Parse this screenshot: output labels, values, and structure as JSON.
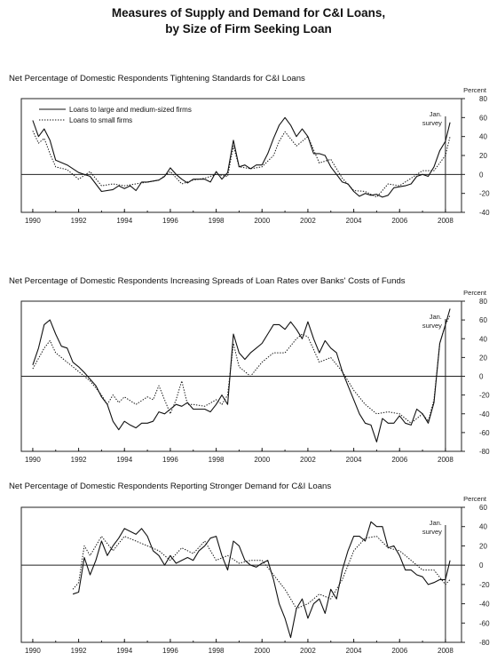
{
  "title_line1": "Measures of Supply and Demand for C&I Loans,",
  "title_line2": "by Size of Firm Seeking Loan",
  "chart_data": [
    {
      "type": "line",
      "title": "Net Percentage of Domestic Respondents Tightening Standards for C&I Loans",
      "ylabel": "Percent",
      "annotation": [
        "Jan.",
        "survey"
      ],
      "ylim": [
        -40,
        80
      ],
      "yticks": [
        80,
        60,
        40,
        20,
        0,
        -20,
        -40
      ],
      "xlim": [
        1989.5,
        2008.7
      ],
      "xticks": [
        "1990",
        "1992",
        "1994",
        "1996",
        "1998",
        "2000",
        "2002",
        "2004",
        "2006",
        "2008"
      ],
      "vline_x": 2008.0,
      "legend": [
        "Loans to large and medium-sized firms",
        "Loans to small firms"
      ],
      "series": [
        {
          "name": "Loans to large and medium-sized firms",
          "style": "solid",
          "x": [
            1990.0,
            1990.25,
            1990.5,
            1990.75,
            1991.0,
            1991.5,
            1992.0,
            1992.5,
            1993.0,
            1993.5,
            1993.75,
            1994.0,
            1994.25,
            1994.5,
            1994.75,
            1995.0,
            1995.5,
            1995.75,
            1996.0,
            1996.25,
            1996.5,
            1996.75,
            1997.0,
            1997.5,
            1997.75,
            1998.0,
            1998.25,
            1998.5,
            1998.75,
            1999.0,
            1999.25,
            1999.5,
            1999.75,
            2000.0,
            2000.25,
            2000.5,
            2000.75,
            2001.0,
            2001.25,
            2001.5,
            2001.75,
            2002.0,
            2002.25,
            2002.5,
            2002.75,
            2003.0,
            2003.25,
            2003.5,
            2003.75,
            2004.0,
            2004.25,
            2004.5,
            2004.75,
            2005.0,
            2005.25,
            2005.5,
            2005.75,
            2006.0,
            2006.25,
            2006.5,
            2006.75,
            2007.0,
            2007.25,
            2007.5,
            2007.75,
            2008.0,
            2008.2
          ],
          "y": [
            57,
            40,
            48,
            36,
            15,
            10,
            2,
            -2,
            -18,
            -16,
            -12,
            -15,
            -12,
            -17,
            -8,
            -8,
            -6,
            -2,
            7,
            0,
            -5,
            -9,
            -5,
            -5,
            -8,
            3,
            -5,
            2,
            36,
            8,
            10,
            6,
            10,
            10,
            22,
            38,
            52,
            60,
            52,
            40,
            48,
            40,
            22,
            22,
            20,
            8,
            0,
            -8,
            -10,
            -18,
            -23,
            -20,
            -22,
            -21,
            -24,
            -22,
            -14,
            -13,
            -12,
            -10,
            -2,
            0,
            -2,
            8,
            25,
            35,
            55
          ]
        },
        {
          "name": "Loans to small firms",
          "style": "dotted",
          "x": [
            1990.0,
            1990.25,
            1990.5,
            1990.75,
            1991.0,
            1991.5,
            1992.0,
            1992.5,
            1993.0,
            1993.5,
            1994.0,
            1994.5,
            1995.0,
            1995.5,
            1996.0,
            1996.5,
            1997.0,
            1997.5,
            1998.0,
            1998.5,
            1998.75,
            1999.0,
            1999.5,
            2000.0,
            2000.5,
            2000.75,
            2001.0,
            2001.5,
            2002.0,
            2002.5,
            2003.0,
            2003.5,
            2004.0,
            2004.5,
            2005.0,
            2005.5,
            2006.0,
            2006.5,
            2007.0,
            2007.5,
            2008.0,
            2008.2
          ],
          "y": [
            46,
            33,
            38,
            22,
            8,
            5,
            -5,
            3,
            -12,
            -10,
            -12,
            -10,
            -8,
            -6,
            3,
            -10,
            -6,
            -4,
            0,
            -2,
            30,
            8,
            6,
            8,
            20,
            35,
            45,
            30,
            40,
            12,
            16,
            -4,
            -17,
            -18,
            -24,
            -10,
            -12,
            -4,
            4,
            4,
            20,
            40
          ]
        }
      ]
    },
    {
      "type": "line",
      "title": "Net Percentage of Domestic Respondents Increasing Spreads of Loan Rates over Banks' Costs of Funds",
      "ylabel": "Percent",
      "annotation": [
        "Jan.",
        "survey"
      ],
      "ylim": [
        -80,
        80
      ],
      "yticks": [
        80,
        60,
        40,
        20,
        0,
        -20,
        -40,
        -60,
        -80
      ],
      "xlim": [
        1989.5,
        2008.7
      ],
      "xticks": [
        "1990",
        "1992",
        "1994",
        "1996",
        "1998",
        "2000",
        "2002",
        "2004",
        "2006",
        "2008"
      ],
      "vline_x": 2008.0,
      "series": [
        {
          "name": "Loans to large and medium-sized firms",
          "style": "solid",
          "x": [
            1990.0,
            1990.25,
            1990.5,
            1990.75,
            1991.0,
            1991.25,
            1991.5,
            1991.75,
            1992.0,
            1992.25,
            1992.5,
            1992.75,
            1993.0,
            1993.25,
            1993.5,
            1993.75,
            1994.0,
            1994.25,
            1994.5,
            1994.75,
            1995.0,
            1995.25,
            1995.5,
            1995.75,
            1996.0,
            1996.25,
            1996.5,
            1996.75,
            1997.0,
            1997.25,
            1997.5,
            1997.75,
            1998.0,
            1998.25,
            1998.5,
            1998.75,
            1999.0,
            1999.25,
            1999.5,
            1999.75,
            2000.0,
            2000.25,
            2000.5,
            2000.75,
            2001.0,
            2001.25,
            2001.5,
            2001.75,
            2002.0,
            2002.25,
            2002.5,
            2002.75,
            2003.0,
            2003.25,
            2003.5,
            2003.75,
            2004.0,
            2004.25,
            2004.5,
            2004.75,
            2005.0,
            2005.25,
            2005.5,
            2005.75,
            2006.0,
            2006.25,
            2006.5,
            2006.75,
            2007.0,
            2007.25,
            2007.5,
            2007.75,
            2008.0,
            2008.2
          ],
          "y": [
            12,
            30,
            55,
            60,
            45,
            32,
            30,
            15,
            10,
            4,
            -3,
            -10,
            -22,
            -30,
            -48,
            -57,
            -48,
            -52,
            -55,
            -50,
            -50,
            -48,
            -38,
            -40,
            -35,
            -30,
            -32,
            -28,
            -35,
            -35,
            -35,
            -38,
            -30,
            -20,
            -30,
            45,
            25,
            18,
            25,
            30,
            35,
            45,
            55,
            55,
            50,
            58,
            50,
            40,
            58,
            40,
            25,
            38,
            30,
            25,
            5,
            -10,
            -25,
            -40,
            -50,
            -52,
            -70,
            -45,
            -50,
            -50,
            -42,
            -50,
            -52,
            -35,
            -40,
            -50,
            -28,
            35,
            55,
            72
          ]
        },
        {
          "name": "Loans to small firms",
          "style": "dotted",
          "x": [
            1990.0,
            1990.5,
            1990.75,
            1991.0,
            1991.5,
            1992.0,
            1992.5,
            1993.0,
            1993.25,
            1993.5,
            1993.75,
            1994.0,
            1994.5,
            1995.0,
            1995.25,
            1995.5,
            1996.0,
            1996.25,
            1996.5,
            1996.75,
            1997.0,
            1997.5,
            1998.0,
            1998.25,
            1998.5,
            1998.75,
            1999.0,
            1999.5,
            2000.0,
            2000.5,
            2001.0,
            2001.5,
            2001.75,
            2002.0,
            2002.5,
            2003.0,
            2003.5,
            2004.0,
            2004.5,
            2005.0,
            2005.5,
            2006.0,
            2006.5,
            2007.0,
            2007.25,
            2007.5,
            2007.75,
            2008.0,
            2008.2
          ],
          "y": [
            8,
            30,
            38,
            25,
            15,
            5,
            -5,
            -20,
            -30,
            -20,
            -28,
            -22,
            -30,
            -22,
            -25,
            -10,
            -40,
            -25,
            -5,
            -30,
            -30,
            -32,
            -25,
            -30,
            -20,
            35,
            10,
            0,
            15,
            25,
            25,
            40,
            45,
            42,
            15,
            20,
            5,
            -15,
            -30,
            -40,
            -38,
            -40,
            -50,
            -40,
            -48,
            -25,
            35,
            55,
            65
          ]
        }
      ]
    },
    {
      "type": "line",
      "title": "Net Percentage of Domestic Respondents Reporting Stronger Demand for C&I Loans",
      "ylabel": "Percent",
      "annotation": [
        "Jan.",
        "survey"
      ],
      "ylim": [
        -80,
        60
      ],
      "yticks": [
        60,
        40,
        20,
        0,
        -20,
        -40,
        -60,
        -80
      ],
      "xlim": [
        1989.5,
        2008.7
      ],
      "xticks": [
        "1990",
        "1992",
        "1994",
        "1996",
        "1998",
        "2000",
        "2002",
        "2004",
        "2006",
        "2008"
      ],
      "vline_x": 2008.0,
      "series": [
        {
          "name": "Loans to large and medium-sized firms",
          "style": "solid",
          "x": [
            1991.75,
            1992.0,
            1992.25,
            1992.5,
            1992.75,
            1993.0,
            1993.25,
            1993.5,
            1993.75,
            1994.0,
            1994.25,
            1994.5,
            1994.75,
            1995.0,
            1995.25,
            1995.5,
            1995.75,
            1996.0,
            1996.25,
            1996.5,
            1996.75,
            1997.0,
            1997.25,
            1997.5,
            1997.75,
            1998.0,
            1998.25,
            1998.5,
            1998.75,
            1999.0,
            1999.25,
            1999.5,
            1999.75,
            2000.0,
            2000.25,
            2000.5,
            2000.75,
            2001.0,
            2001.25,
            2001.5,
            2001.75,
            2002.0,
            2002.25,
            2002.5,
            2002.75,
            2003.0,
            2003.25,
            2003.5,
            2003.75,
            2004.0,
            2004.25,
            2004.5,
            2004.75,
            2005.0,
            2005.25,
            2005.5,
            2005.75,
            2006.0,
            2006.25,
            2006.5,
            2006.75,
            2007.0,
            2007.25,
            2007.5,
            2007.75,
            2008.0,
            2008.2
          ],
          "y": [
            -30,
            -28,
            8,
            -10,
            5,
            25,
            10,
            20,
            28,
            38,
            35,
            32,
            38,
            30,
            15,
            10,
            0,
            10,
            2,
            5,
            8,
            5,
            15,
            20,
            28,
            30,
            10,
            -5,
            25,
            20,
            5,
            0,
            -2,
            2,
            5,
            -15,
            -40,
            -55,
            -75,
            -45,
            -35,
            -55,
            -40,
            -35,
            -50,
            -25,
            -35,
            -5,
            15,
            30,
            30,
            25,
            45,
            40,
            40,
            18,
            20,
            10,
            -5,
            -5,
            -10,
            -12,
            -20,
            -18,
            -15,
            -15,
            5
          ]
        },
        {
          "name": "Loans to small firms",
          "style": "dotted",
          "x": [
            1991.75,
            1992.0,
            1992.25,
            1992.5,
            1992.75,
            1993.0,
            1993.5,
            1994.0,
            1994.5,
            1995.0,
            1995.5,
            1996.0,
            1996.5,
            1997.0,
            1997.5,
            1998.0,
            1998.5,
            1999.0,
            1999.5,
            2000.0,
            2000.5,
            2001.0,
            2001.5,
            2002.0,
            2002.5,
            2003.0,
            2003.5,
            2004.0,
            2004.5,
            2005.0,
            2005.5,
            2006.0,
            2006.5,
            2007.0,
            2007.5,
            2008.0,
            2008.2
          ],
          "y": [
            -25,
            -18,
            20,
            10,
            20,
            30,
            15,
            30,
            25,
            20,
            15,
            5,
            18,
            12,
            25,
            5,
            10,
            2,
            5,
            5,
            -10,
            -25,
            -45,
            -40,
            -30,
            -35,
            -15,
            15,
            28,
            30,
            18,
            15,
            5,
            -5,
            -5,
            -20,
            -15
          ]
        }
      ]
    }
  ]
}
